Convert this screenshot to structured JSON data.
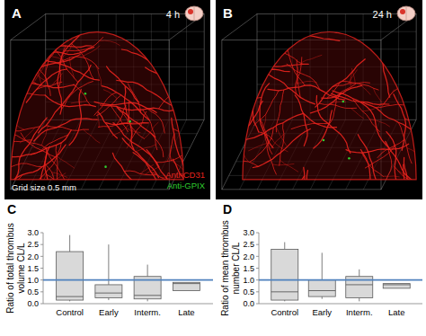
{
  "images": [
    {
      "label": "A",
      "time": "4 h",
      "scale_text": "Grid size 0.5 mm",
      "stains": [
        {
          "name": "Anti-CD31",
          "color": "#e8231e"
        },
        {
          "name": "Anti-GPIX",
          "color": "#2fcb2f"
        }
      ]
    },
    {
      "label": "B",
      "time": "24 h"
    }
  ],
  "chart_data": [
    {
      "type": "box",
      "panel_label": "C",
      "y_label": "Ratio of total thrombus volume CL/L",
      "categories": [
        "Control",
        "Early",
        "Interm.",
        "Late"
      ],
      "boxes": [
        {
          "min": 0.1,
          "q1": 0.15,
          "median": 0.3,
          "q3": 2.2,
          "max": 2.9
        },
        {
          "min": 0.15,
          "q1": 0.25,
          "median": 0.45,
          "q3": 0.8,
          "max": 2.5
        },
        {
          "min": 0.1,
          "q1": 0.2,
          "median": 0.35,
          "q3": 1.15,
          "max": 1.65
        },
        {
          "min": 0.55,
          "q1": 0.55,
          "median": 0.85,
          "q3": 0.9,
          "max": 0.9
        }
      ],
      "color": "#d9d9d9",
      "ylim": [
        0,
        3
      ],
      "yticks": [
        {
          "value": 0,
          "label": "0.0"
        },
        {
          "value": 0.5,
          "label": "0.5"
        },
        {
          "value": 1,
          "label": "1.0"
        },
        {
          "value": 1.5,
          "label": "1.5"
        },
        {
          "value": 2,
          "label": "2.0"
        },
        {
          "value": 2.5,
          "label": "2.5"
        },
        {
          "value": 3,
          "label": "3.0"
        }
      ],
      "grid": false,
      "reference_line": {
        "value": 1,
        "color": "#4f81bd"
      }
    },
    {
      "type": "box",
      "panel_label": "D",
      "y_label": "Ratio of mean thrombus number CL/L",
      "categories": [
        "Control",
        "Early",
        "Interm.",
        "Late"
      ],
      "boxes": [
        {
          "min": 0.1,
          "q1": 0.15,
          "median": 0.5,
          "q3": 2.3,
          "max": 2.6
        },
        {
          "min": 0.2,
          "q1": 0.3,
          "median": 0.55,
          "q3": 1.0,
          "max": 2.15
        },
        {
          "min": 0.1,
          "q1": 0.25,
          "median": 0.8,
          "q3": 1.15,
          "max": 1.45
        },
        {
          "min": 0.65,
          "q1": 0.65,
          "median": 0.8,
          "q3": 0.85,
          "max": 0.85
        }
      ],
      "color": "#d9d9d9",
      "ylim": [
        0,
        3
      ],
      "yticks": [
        {
          "value": 0,
          "label": "0.0"
        },
        {
          "value": 0.5,
          "label": "0.5"
        },
        {
          "value": 1,
          "label": "1.0"
        },
        {
          "value": 1.5,
          "label": "1.5"
        },
        {
          "value": 2,
          "label": "2.0"
        },
        {
          "value": 2.5,
          "label": "2.5"
        },
        {
          "value": 3,
          "label": "3.0"
        }
      ],
      "grid": false,
      "reference_line": {
        "value": 1,
        "color": "#4f81bd"
      }
    }
  ]
}
